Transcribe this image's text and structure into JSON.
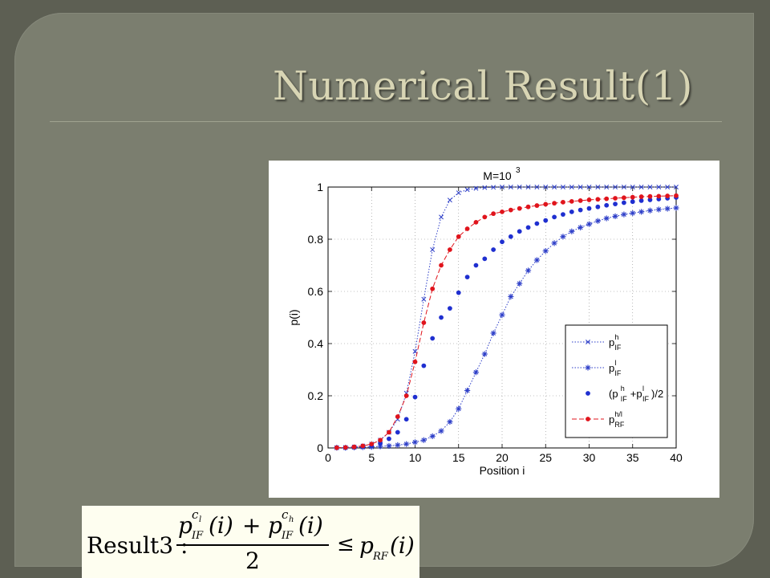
{
  "slide": {
    "title": "Numerical Result(1)"
  },
  "chart_data": {
    "type": "scatter",
    "title": "M=10",
    "title_superscript": "3",
    "xlabel": "Position i",
    "ylabel": "p(i)",
    "xlim": [
      0,
      40
    ],
    "ylim": [
      0,
      1
    ],
    "x_ticks": [
      "0",
      "5",
      "10",
      "15",
      "20",
      "25",
      "30",
      "35",
      "40"
    ],
    "y_ticks": [
      "0",
      "0.2",
      "0.4",
      "0.6",
      "0.8",
      "1"
    ],
    "grid": true,
    "legend_position": "bottom-right",
    "x": [
      1,
      2,
      3,
      4,
      5,
      6,
      7,
      8,
      9,
      10,
      11,
      12,
      13,
      14,
      15,
      16,
      17,
      18,
      19,
      20,
      21,
      22,
      23,
      24,
      25,
      26,
      27,
      28,
      29,
      30,
      31,
      32,
      33,
      34,
      35,
      36,
      37,
      38,
      39,
      40
    ],
    "series": [
      {
        "name": "p_IF^h",
        "legend_base": "p",
        "legend_sup": "h",
        "legend_sub": "IF",
        "color": "#2d3ec8",
        "marker": "x",
        "line": "dotted",
        "values": [
          0.001,
          0.002,
          0.004,
          0.008,
          0.015,
          0.03,
          0.06,
          0.11,
          0.21,
          0.37,
          0.57,
          0.76,
          0.885,
          0.95,
          0.978,
          0.99,
          0.995,
          0.998,
          0.999,
          1,
          1,
          1,
          1,
          1,
          1,
          1,
          1,
          1,
          1,
          1,
          1,
          1,
          1,
          1,
          1,
          1,
          1,
          1,
          1,
          1
        ]
      },
      {
        "name": "p_IF^l",
        "legend_base": "p",
        "legend_sup": "l",
        "legend_sub": "IF",
        "color": "#2d3ec8",
        "marker": "asterisk",
        "line": "dotted",
        "values": [
          0.001,
          0.001,
          0.002,
          0.003,
          0.004,
          0.006,
          0.008,
          0.011,
          0.015,
          0.022,
          0.03,
          0.045,
          0.065,
          0.1,
          0.15,
          0.22,
          0.29,
          0.36,
          0.44,
          0.51,
          0.58,
          0.63,
          0.68,
          0.72,
          0.755,
          0.785,
          0.81,
          0.83,
          0.845,
          0.858,
          0.87,
          0.88,
          0.888,
          0.895,
          0.9,
          0.905,
          0.91,
          0.914,
          0.917,
          0.92
        ]
      },
      {
        "name": "(p_IF^h+p_IF^l)/2",
        "legend_base": "(p",
        "legend_sup": "h",
        "legend_sub": "IF",
        "legend_mid": "+p",
        "legend_sup2": "l",
        "legend_sub2": "IF",
        "legend_tail": ")/2",
        "color": "#1f2fd0",
        "marker": "dot",
        "line": "none",
        "values": [
          0.001,
          0.001,
          0.003,
          0.005,
          0.009,
          0.018,
          0.035,
          0.06,
          0.11,
          0.195,
          0.315,
          0.42,
          0.5,
          0.535,
          0.595,
          0.655,
          0.7,
          0.725,
          0.76,
          0.79,
          0.81,
          0.83,
          0.845,
          0.86,
          0.872,
          0.885,
          0.895,
          0.905,
          0.912,
          0.918,
          0.924,
          0.93,
          0.935,
          0.94,
          0.944,
          0.948,
          0.951,
          0.954,
          0.957,
          0.96
        ]
      },
      {
        "name": "p_RF^h/l",
        "legend_base": "p",
        "legend_sup": "h/l",
        "legend_sub": "RF",
        "color": "#e0141c",
        "marker": "dot",
        "line": "dashed",
        "values": [
          0.001,
          0.002,
          0.004,
          0.008,
          0.015,
          0.03,
          0.06,
          0.12,
          0.2,
          0.33,
          0.48,
          0.61,
          0.7,
          0.76,
          0.81,
          0.84,
          0.865,
          0.885,
          0.898,
          0.905,
          0.912,
          0.918,
          0.924,
          0.929,
          0.934,
          0.938,
          0.942,
          0.945,
          0.948,
          0.951,
          0.953,
          0.955,
          0.957,
          0.959,
          0.961,
          0.963,
          0.964,
          0.965,
          0.966,
          0.967
        ]
      }
    ]
  },
  "formula": {
    "label": "Result3 :",
    "num_p1": "p",
    "num_sup1": "c",
    "num_sup1_sub": "l",
    "num_sub1": "IF",
    "num_arg1": "(i)",
    "plus": "+",
    "num_p2": "p",
    "num_sup2": "c",
    "num_sup2_sub": "h",
    "num_sub2": "IF",
    "num_arg2": "(i)",
    "denominator": "2",
    "relation": "≤",
    "rhs_p": "p",
    "rhs_sub": "RF",
    "rhs_arg": "(i)"
  }
}
